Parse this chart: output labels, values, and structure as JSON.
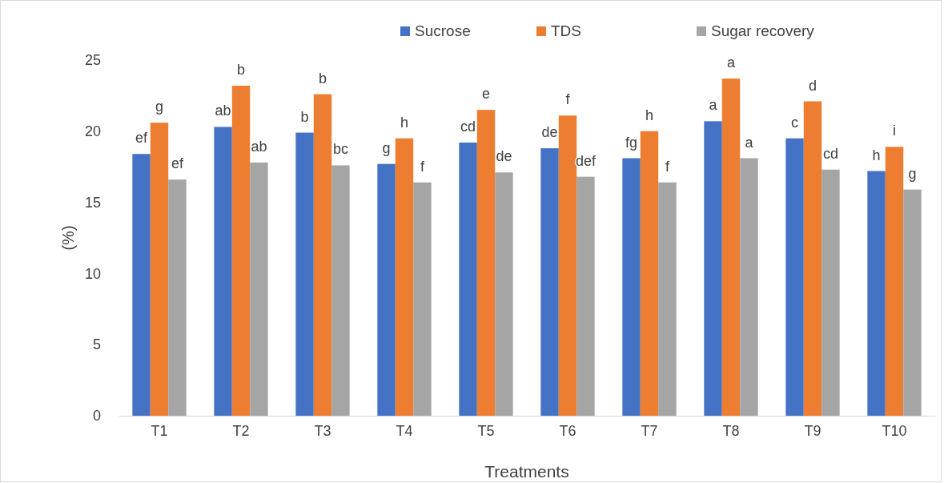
{
  "chart_data": {
    "type": "bar",
    "xlabel": "Treatments",
    "ylabel": "(%)",
    "categories": [
      "T1",
      "T2",
      "T3",
      "T4",
      "T5",
      "T6",
      "T7",
      "T8",
      "T9",
      "T10"
    ],
    "series": [
      {
        "name": "Sucrose",
        "color": "#4472c4",
        "values": [
          18.4,
          20.3,
          19.9,
          17.7,
          19.2,
          18.8,
          18.1,
          20.7,
          19.5,
          17.2
        ],
        "value_labels": [
          "ef",
          "ab",
          "b",
          "g",
          "cd",
          "de",
          "fg",
          "a",
          "c",
          "h"
        ]
      },
      {
        "name": "TDS",
        "color": "#ed7d31",
        "values": [
          20.6,
          23.2,
          22.6,
          19.5,
          21.5,
          21.1,
          20.0,
          23.7,
          22.1,
          18.9
        ],
        "value_labels": [
          "g",
          "b",
          "b",
          "h",
          "e",
          "f",
          "h",
          "a",
          "d",
          "i"
        ]
      },
      {
        "name": "Sugar recovery",
        "color": "#a5a5a5",
        "values": [
          16.6,
          17.8,
          17.6,
          16.4,
          17.1,
          16.8,
          16.4,
          18.1,
          17.3,
          15.9
        ],
        "value_labels": [
          "ef",
          "ab",
          "bc",
          "f",
          "de",
          "def",
          "f",
          "a",
          "cd",
          "g"
        ]
      }
    ],
    "ylim": [
      0,
      25
    ],
    "yticks": [
      0,
      5,
      10,
      15,
      20,
      25
    ],
    "grid": false,
    "legend": "top right"
  }
}
